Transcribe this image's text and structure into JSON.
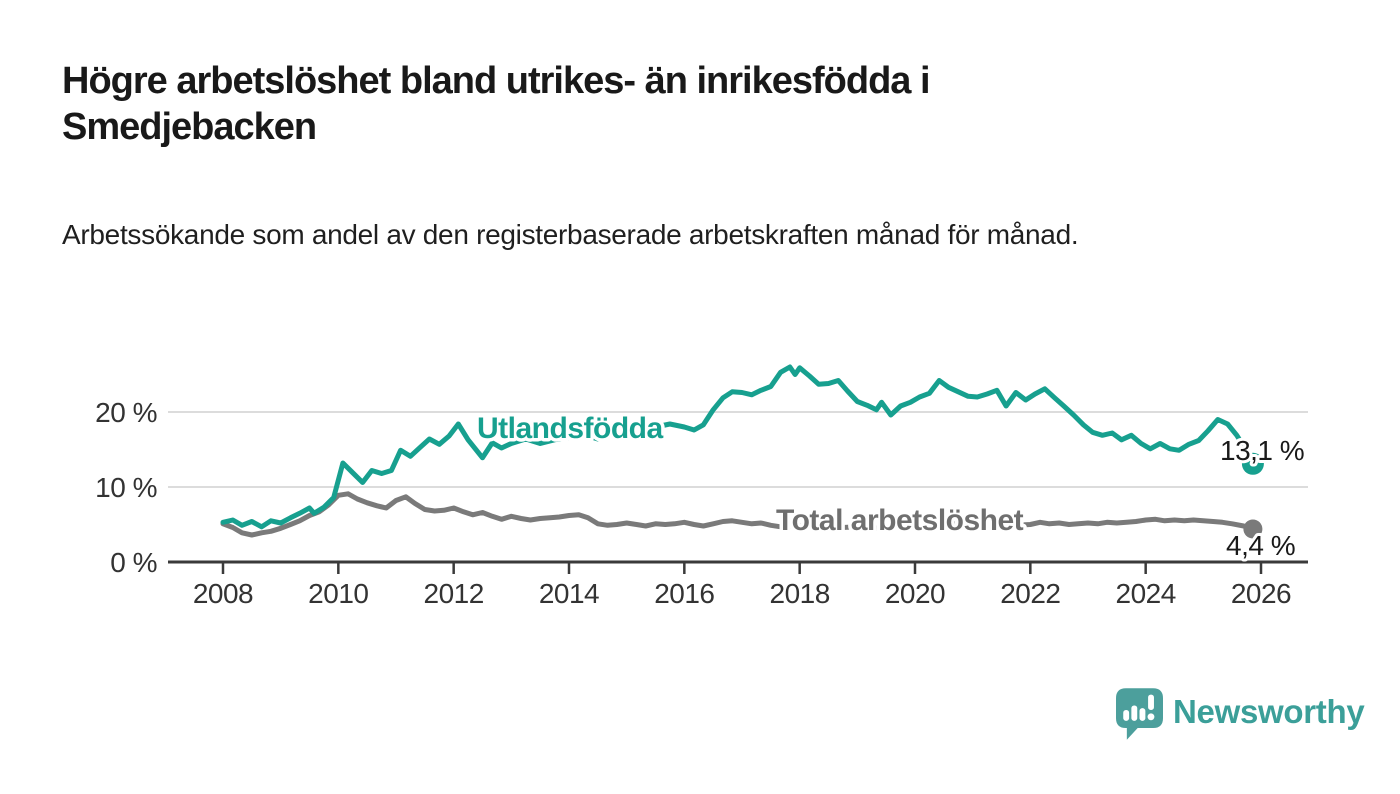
{
  "header": {
    "title": "Högre arbetslöshet bland utrikes- än inrikesfödda i Smedjebacken",
    "subtitle": "Arbetssökande som andel av den registerbaserade arbetskraften månad för månad."
  },
  "footer": {
    "brand": "Newsworthy"
  },
  "colors": {
    "accent_teal": "#17a08f",
    "line_gray": "#7a7a7a",
    "label_gray": "#6f6f6f",
    "grid": "#dcdcdc",
    "axis": "#3a3a3a",
    "text": "#1a1a1a",
    "logo_teal": "#4c9f9c"
  },
  "chart_data": {
    "type": "line",
    "unit": "%",
    "grid": "horizontal",
    "legend_position": "inline-labels",
    "x_range": [
      2007.05,
      2026.8
    ],
    "y_range": [
      0,
      28
    ],
    "x_ticks": [
      {
        "value": 2008,
        "label": "2008"
      },
      {
        "value": 2010,
        "label": "2010"
      },
      {
        "value": 2012,
        "label": "2012"
      },
      {
        "value": 2014,
        "label": "2014"
      },
      {
        "value": 2016,
        "label": "2016"
      },
      {
        "value": 2018,
        "label": "2018"
      },
      {
        "value": 2020,
        "label": "2020"
      },
      {
        "value": 2022,
        "label": "2022"
      },
      {
        "value": 2024,
        "label": "2024"
      },
      {
        "value": 2026,
        "label": "2026"
      }
    ],
    "y_ticks": [
      {
        "value": 0,
        "label": "0 %"
      },
      {
        "value": 10,
        "label": "10 %"
      },
      {
        "value": 20,
        "label": "20 %"
      }
    ],
    "series": [
      {
        "name": "Utlandsfödda",
        "color": "#17a08f",
        "end_label": "13,1 %",
        "end_value": 13.1,
        "points": [
          [
            2008.0,
            5.3
          ],
          [
            2008.17,
            5.6
          ],
          [
            2008.33,
            4.9
          ],
          [
            2008.5,
            5.4
          ],
          [
            2008.67,
            4.7
          ],
          [
            2008.83,
            5.5
          ],
          [
            2009.0,
            5.2
          ],
          [
            2009.17,
            5.9
          ],
          [
            2009.33,
            6.5
          ],
          [
            2009.5,
            7.2
          ],
          [
            2009.58,
            6.5
          ],
          [
            2009.75,
            7.3
          ],
          [
            2009.92,
            8.6
          ],
          [
            2010.08,
            13.2
          ],
          [
            2010.25,
            11.9
          ],
          [
            2010.42,
            10.6
          ],
          [
            2010.58,
            12.2
          ],
          [
            2010.75,
            11.8
          ],
          [
            2010.92,
            12.2
          ],
          [
            2011.08,
            14.9
          ],
          [
            2011.25,
            14.1
          ],
          [
            2011.42,
            15.3
          ],
          [
            2011.58,
            16.4
          ],
          [
            2011.75,
            15.7
          ],
          [
            2011.92,
            16.8
          ],
          [
            2012.08,
            18.4
          ],
          [
            2012.25,
            16.3
          ],
          [
            2012.5,
            13.9
          ],
          [
            2012.67,
            15.9
          ],
          [
            2012.83,
            15.2
          ],
          [
            2013.0,
            15.8
          ],
          [
            2013.25,
            16.4
          ],
          [
            2013.5,
            15.8
          ],
          [
            2013.75,
            16.3
          ],
          [
            2014.0,
            16.6
          ],
          [
            2014.25,
            17.0
          ],
          [
            2014.5,
            16.4
          ],
          [
            2014.75,
            17.2
          ],
          [
            2015.0,
            17.8
          ],
          [
            2015.25,
            17.3
          ],
          [
            2015.5,
            18.0
          ],
          [
            2015.75,
            18.4
          ],
          [
            2016.0,
            18.0
          ],
          [
            2016.17,
            17.6
          ],
          [
            2016.33,
            18.3
          ],
          [
            2016.5,
            20.3
          ],
          [
            2016.67,
            21.9
          ],
          [
            2016.83,
            22.7
          ],
          [
            2017.0,
            22.6
          ],
          [
            2017.17,
            22.3
          ],
          [
            2017.33,
            22.9
          ],
          [
            2017.5,
            23.4
          ],
          [
            2017.67,
            25.3
          ],
          [
            2017.83,
            26.0
          ],
          [
            2017.92,
            25.0
          ],
          [
            2018.0,
            25.9
          ],
          [
            2018.17,
            24.8
          ],
          [
            2018.33,
            23.7
          ],
          [
            2018.5,
            23.8
          ],
          [
            2018.67,
            24.2
          ],
          [
            2018.83,
            22.8
          ],
          [
            2019.0,
            21.4
          ],
          [
            2019.17,
            20.9
          ],
          [
            2019.33,
            20.3
          ],
          [
            2019.42,
            21.3
          ],
          [
            2019.58,
            19.6
          ],
          [
            2019.75,
            20.8
          ],
          [
            2019.92,
            21.3
          ],
          [
            2020.08,
            22.0
          ],
          [
            2020.25,
            22.5
          ],
          [
            2020.42,
            24.2
          ],
          [
            2020.58,
            23.3
          ],
          [
            2020.75,
            22.7
          ],
          [
            2020.92,
            22.1
          ],
          [
            2021.08,
            22.0
          ],
          [
            2021.25,
            22.4
          ],
          [
            2021.42,
            22.9
          ],
          [
            2021.58,
            20.8
          ],
          [
            2021.75,
            22.6
          ],
          [
            2021.92,
            21.6
          ],
          [
            2022.08,
            22.4
          ],
          [
            2022.25,
            23.1
          ],
          [
            2022.42,
            21.9
          ],
          [
            2022.58,
            20.8
          ],
          [
            2022.75,
            19.6
          ],
          [
            2022.92,
            18.3
          ],
          [
            2023.08,
            17.3
          ],
          [
            2023.25,
            16.9
          ],
          [
            2023.42,
            17.2
          ],
          [
            2023.58,
            16.3
          ],
          [
            2023.75,
            16.9
          ],
          [
            2023.92,
            15.8
          ],
          [
            2024.08,
            15.1
          ],
          [
            2024.25,
            15.8
          ],
          [
            2024.42,
            15.1
          ],
          [
            2024.58,
            14.9
          ],
          [
            2024.75,
            15.7
          ],
          [
            2024.92,
            16.2
          ],
          [
            2025.08,
            17.5
          ],
          [
            2025.25,
            19.0
          ],
          [
            2025.42,
            18.4
          ],
          [
            2025.58,
            16.9
          ],
          [
            2025.75,
            14.8
          ],
          [
            2025.86,
            13.1
          ]
        ]
      },
      {
        "name": "Total arbetslöshet",
        "color": "#7a7a7a",
        "label_color": "#6f6f6f",
        "end_label": "4,4 %",
        "end_value": 4.4,
        "points": [
          [
            2008.0,
            5.1
          ],
          [
            2008.17,
            4.6
          ],
          [
            2008.33,
            3.9
          ],
          [
            2008.5,
            3.6
          ],
          [
            2008.67,
            3.9
          ],
          [
            2008.83,
            4.1
          ],
          [
            2009.0,
            4.5
          ],
          [
            2009.17,
            5.0
          ],
          [
            2009.33,
            5.5
          ],
          [
            2009.5,
            6.2
          ],
          [
            2009.67,
            6.7
          ],
          [
            2009.83,
            7.6
          ],
          [
            2010.0,
            8.9
          ],
          [
            2010.17,
            9.1
          ],
          [
            2010.33,
            8.4
          ],
          [
            2010.5,
            7.9
          ],
          [
            2010.67,
            7.5
          ],
          [
            2010.83,
            7.2
          ],
          [
            2011.0,
            8.2
          ],
          [
            2011.17,
            8.7
          ],
          [
            2011.33,
            7.8
          ],
          [
            2011.5,
            7.0
          ],
          [
            2011.67,
            6.8
          ],
          [
            2011.83,
            6.9
          ],
          [
            2012.0,
            7.2
          ],
          [
            2012.17,
            6.7
          ],
          [
            2012.33,
            6.3
          ],
          [
            2012.5,
            6.6
          ],
          [
            2012.67,
            6.1
          ],
          [
            2012.83,
            5.7
          ],
          [
            2013.0,
            6.1
          ],
          [
            2013.17,
            5.8
          ],
          [
            2013.33,
            5.6
          ],
          [
            2013.5,
            5.8
          ],
          [
            2013.67,
            5.9
          ],
          [
            2013.83,
            6.0
          ],
          [
            2014.0,
            6.2
          ],
          [
            2014.17,
            6.3
          ],
          [
            2014.33,
            5.9
          ],
          [
            2014.5,
            5.1
          ],
          [
            2014.67,
            4.9
          ],
          [
            2014.83,
            5.0
          ],
          [
            2015.0,
            5.2
          ],
          [
            2015.17,
            5.0
          ],
          [
            2015.33,
            4.8
          ],
          [
            2015.5,
            5.1
          ],
          [
            2015.67,
            5.0
          ],
          [
            2015.83,
            5.1
          ],
          [
            2016.0,
            5.3
          ],
          [
            2016.17,
            5.0
          ],
          [
            2016.33,
            4.8
          ],
          [
            2016.5,
            5.1
          ],
          [
            2016.67,
            5.4
          ],
          [
            2016.83,
            5.5
          ],
          [
            2017.0,
            5.3
          ],
          [
            2017.17,
            5.1
          ],
          [
            2017.33,
            5.2
          ],
          [
            2017.5,
            4.9
          ],
          [
            2017.67,
            4.7
          ],
          [
            2017.83,
            4.8
          ],
          [
            2018.0,
            4.9
          ],
          [
            2018.25,
            4.7
          ],
          [
            2018.5,
            4.8
          ],
          [
            2018.75,
            4.6
          ],
          [
            2019.0,
            4.7
          ],
          [
            2019.25,
            4.5
          ],
          [
            2019.5,
            4.6
          ],
          [
            2019.75,
            4.8
          ],
          [
            2020.0,
            5.0
          ],
          [
            2020.25,
            5.4
          ],
          [
            2020.5,
            5.3
          ],
          [
            2020.75,
            5.1
          ],
          [
            2021.0,
            5.2
          ],
          [
            2021.25,
            5.0
          ],
          [
            2021.5,
            4.8
          ],
          [
            2021.75,
            4.9
          ],
          [
            2022.0,
            5.0
          ],
          [
            2022.17,
            5.3
          ],
          [
            2022.33,
            5.1
          ],
          [
            2022.5,
            5.2
          ],
          [
            2022.67,
            5.0
          ],
          [
            2022.83,
            5.1
          ],
          [
            2023.0,
            5.2
          ],
          [
            2023.17,
            5.1
          ],
          [
            2023.33,
            5.3
          ],
          [
            2023.5,
            5.2
          ],
          [
            2023.67,
            5.3
          ],
          [
            2023.83,
            5.4
          ],
          [
            2024.0,
            5.6
          ],
          [
            2024.17,
            5.7
          ],
          [
            2024.33,
            5.5
          ],
          [
            2024.5,
            5.6
          ],
          [
            2024.67,
            5.5
          ],
          [
            2024.83,
            5.6
          ],
          [
            2025.0,
            5.5
          ],
          [
            2025.17,
            5.4
          ],
          [
            2025.33,
            5.3
          ],
          [
            2025.5,
            5.1
          ],
          [
            2025.7,
            4.8
          ],
          [
            2025.86,
            4.4
          ]
        ]
      }
    ]
  }
}
